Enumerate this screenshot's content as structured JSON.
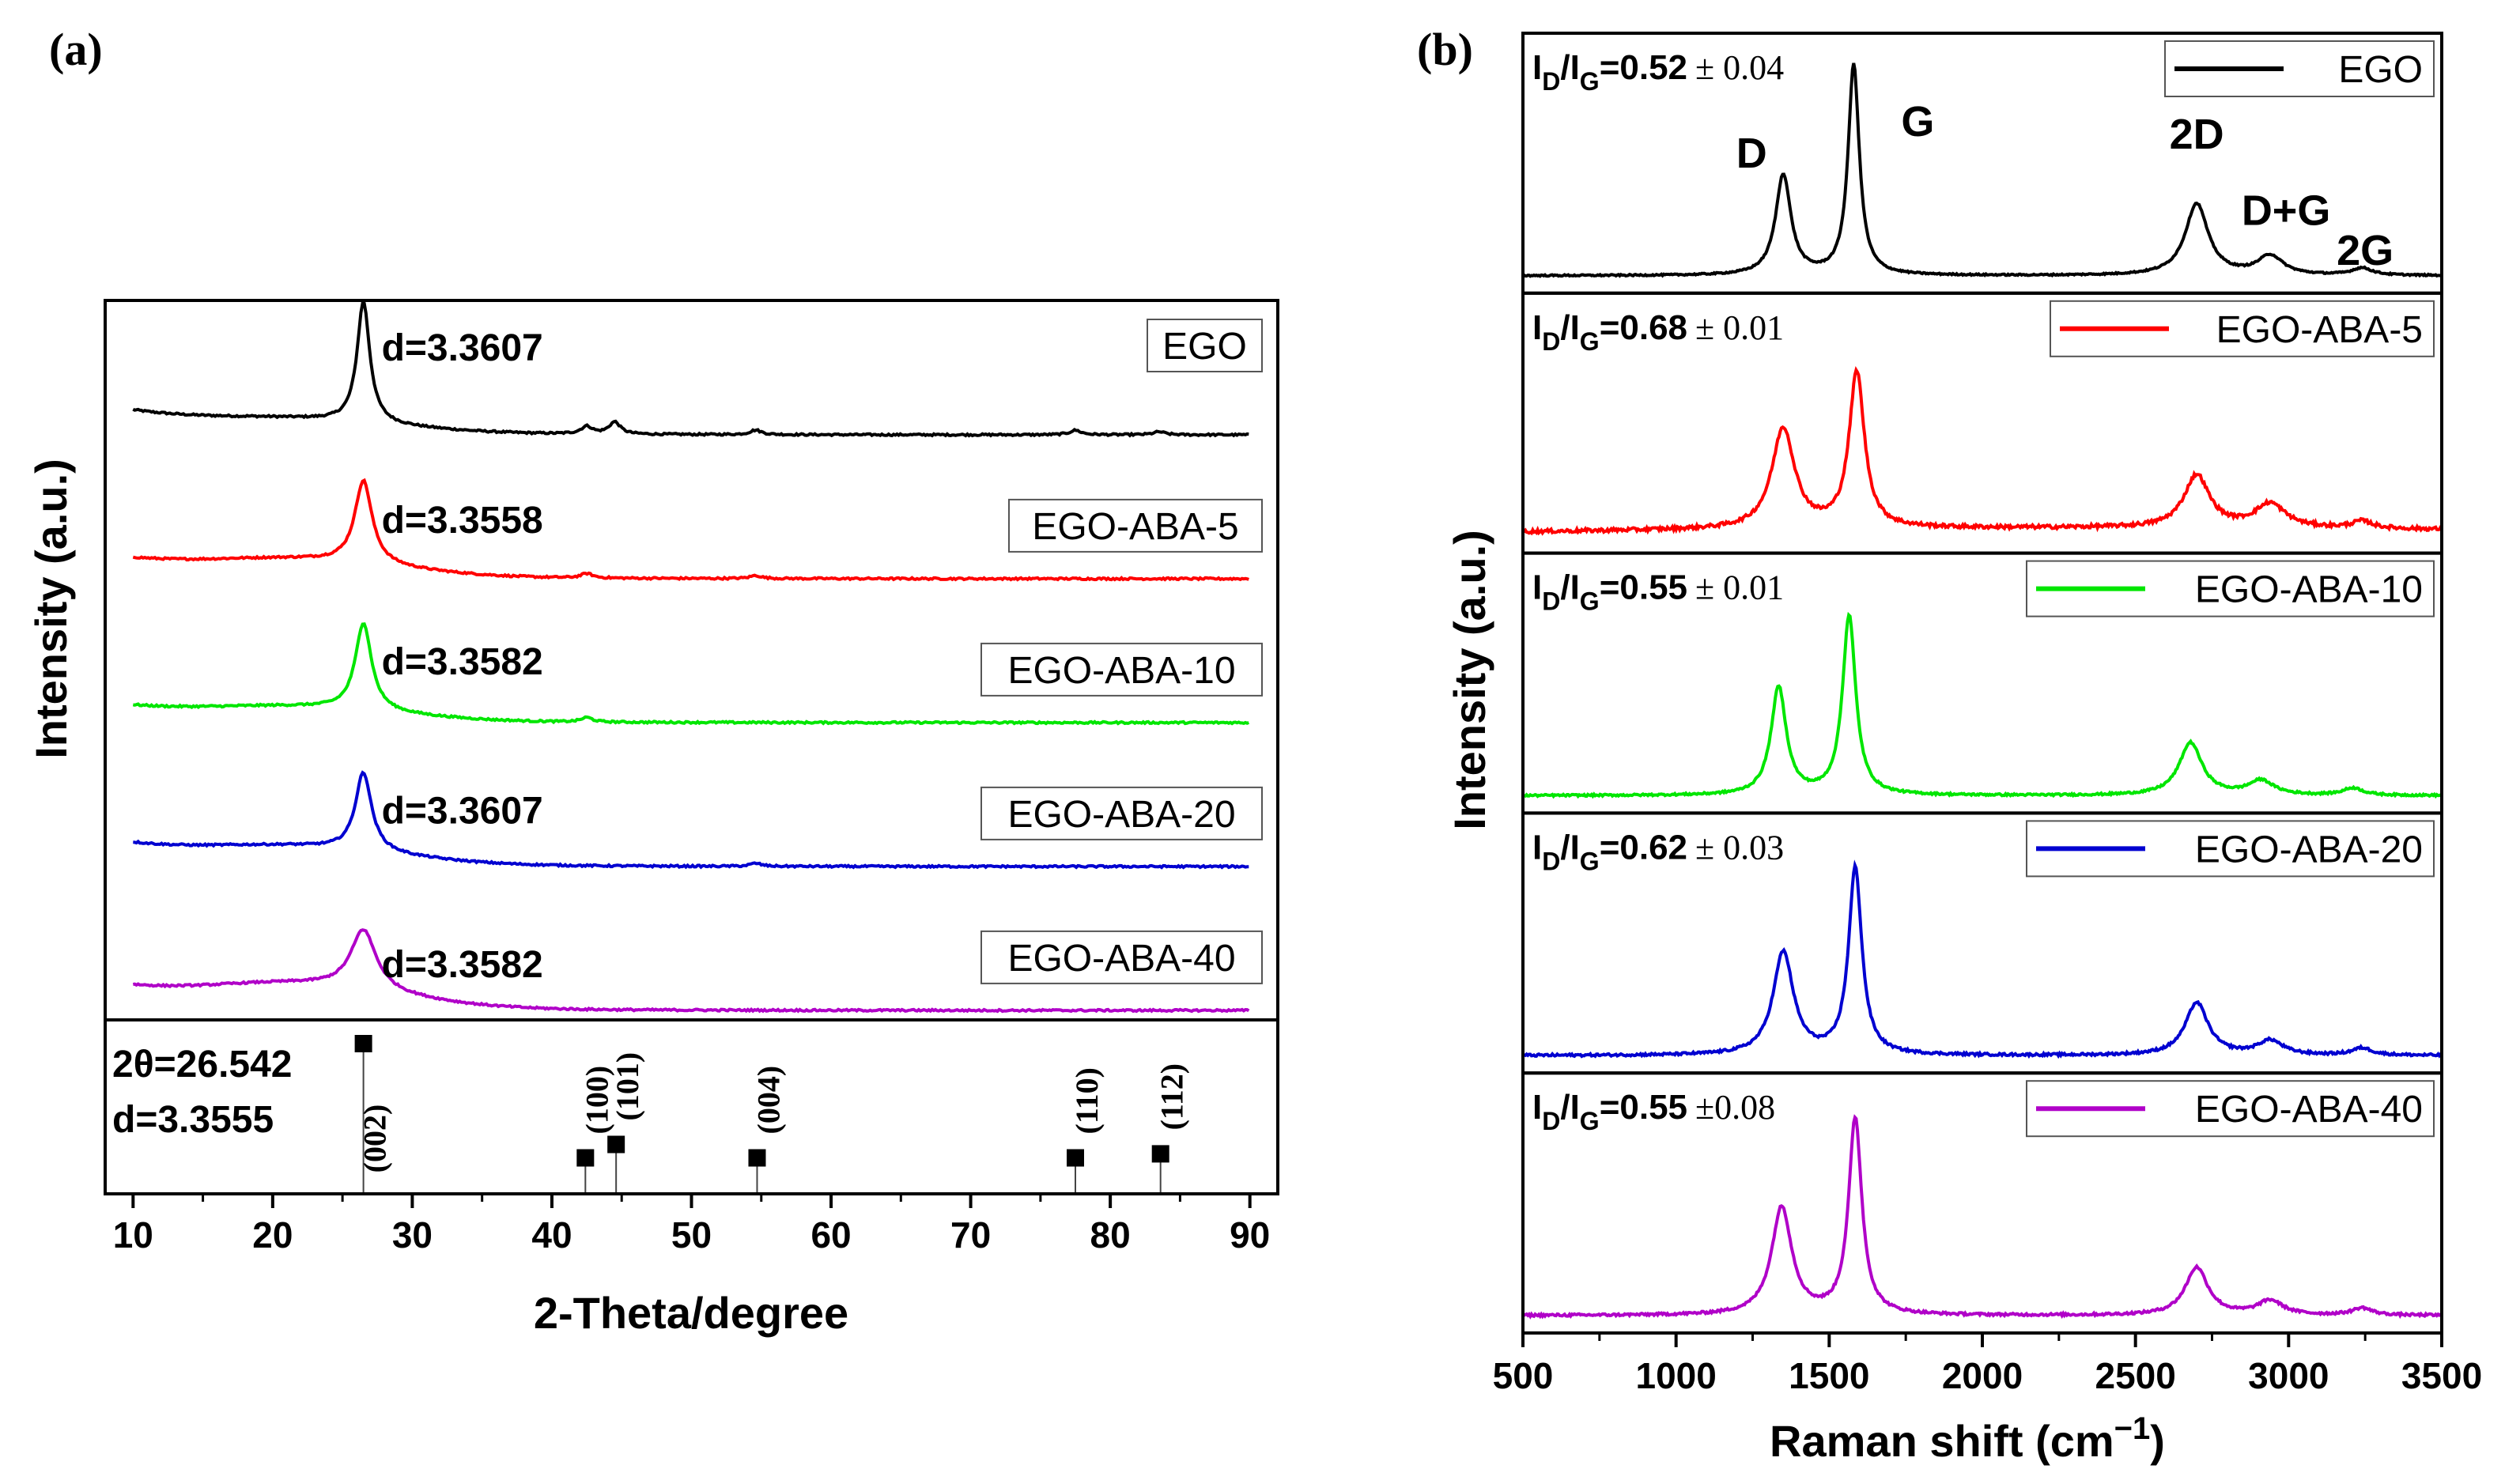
{
  "chart_data": [
    {
      "id": "a",
      "panel_label": "(a)",
      "type": "line",
      "title": "",
      "xlabel": "2-Theta/degree",
      "ylabel": "Intensity (a.u.)",
      "xlim": [
        8,
        92
      ],
      "xticks": [
        10,
        20,
        30,
        40,
        50,
        60,
        70,
        80,
        90
      ],
      "series": [
        {
          "name": "EGO",
          "color": "#000000",
          "d_label": "d=3.3607",
          "baseline": 0.12,
          "peak_height": 0.8,
          "peak_width": 0.55,
          "hump": 0.07,
          "low_angle": 0.15,
          "minor_peaks": [
            [
              42.5,
              0.05
            ],
            [
              44.5,
              0.08
            ],
            [
              54.6,
              0.03
            ],
            [
              77.5,
              0.03
            ],
            [
              83.5,
              0.02
            ]
          ]
        },
        {
          "name": "EGO-ABA-5",
          "color": "#ff0000",
          "d_label": "d=3.3558",
          "baseline": 0.1,
          "peak_height": 0.55,
          "peak_width": 0.75,
          "hump": 0.1,
          "low_angle": 0.12,
          "minor_peaks": [
            [
              42.5,
              0.03
            ],
            [
              54.6,
              0.02
            ]
          ]
        },
        {
          "name": "EGO-ABA-10",
          "color": "#00e600",
          "d_label": "d=3.3582",
          "baseline": 0.1,
          "peak_height": 0.58,
          "peak_width": 0.7,
          "hump": 0.08,
          "low_angle": 0.1,
          "minor_peaks": [
            [
              42.5,
              0.03
            ]
          ]
        },
        {
          "name": "EGO-ABA-20",
          "color": "#0000d0",
          "d_label": "d=3.3607",
          "baseline": 0.1,
          "peak_height": 0.52,
          "peak_width": 0.7,
          "hump": 0.1,
          "low_angle": 0.14,
          "minor_peaks": [
            [
              54.6,
              0.02
            ]
          ]
        },
        {
          "name": "EGO-ABA-40",
          "color": "#b000c8",
          "d_label": "d=3.3582",
          "baseline": 0.08,
          "peak_height": 0.4,
          "peak_width": 1.1,
          "hump": 0.14,
          "low_angle": 0.14,
          "minor_peaks": []
        }
      ],
      "reference": {
        "two_theta_text": "2θ=26.542",
        "d_text": "d=3.3555",
        "peaks": [
          {
            "hkl": "(002)",
            "two_theta": 26.5,
            "intensity": 1.0
          },
          {
            "hkl": "(100)",
            "two_theta": 42.4,
            "intensity": 0.15
          },
          {
            "hkl": "(101)",
            "two_theta": 44.6,
            "intensity": 0.25
          },
          {
            "hkl": "(004)",
            "two_theta": 54.7,
            "intensity": 0.15
          },
          {
            "hkl": "(110)",
            "two_theta": 77.5,
            "intensity": 0.15
          },
          {
            "hkl": "(112)",
            "two_theta": 83.6,
            "intensity": 0.18
          }
        ]
      }
    },
    {
      "id": "b",
      "panel_label": "(b)",
      "type": "line",
      "title": "",
      "xlabel": "Raman shift (cm",
      "xlabel_sup": "−1",
      "xlabel_close": ")",
      "ylabel": "Intensity (a.u.)",
      "xlim": [
        500,
        3500
      ],
      "xticks": [
        500,
        1000,
        1500,
        2000,
        2500,
        3000,
        3500
      ],
      "ratio_prefix": "I",
      "ratio_sub_d": "D",
      "ratio_slash": "/I",
      "ratio_sub_g": "G",
      "peak_labels": [
        "D",
        "G",
        "2D",
        "D+G",
        "2G"
      ],
      "series": [
        {
          "name": "EGO",
          "color": "#000000",
          "ratio_value": "=0.52",
          "ratio_err": "± 0.04",
          "slope": 0.0,
          "D": [
            1350,
            0.42,
            30
          ],
          "G": [
            1580,
            0.88,
            22
          ],
          "D2": [
            2700,
            0.3,
            45
          ],
          "DG": [
            2940,
            0.08,
            50
          ],
          "G2": [
            3240,
            0.03,
            40
          ],
          "noise": 0.006
        },
        {
          "name": "EGO-ABA-5",
          "color": "#ff0000",
          "ratio_value": "=0.68",
          "ratio_err": "± 0.01",
          "slope": 0.08,
          "D": [
            1350,
            0.42,
            45
          ],
          "G": [
            1590,
            0.65,
            30
          ],
          "D2": [
            2700,
            0.22,
            50
          ],
          "DG": [
            2940,
            0.1,
            60
          ],
          "G2": [
            3240,
            0.03,
            40
          ],
          "noise": 0.015
        },
        {
          "name": "EGO-ABA-10",
          "color": "#00e600",
          "ratio_value": "=0.55",
          "ratio_err": "± 0.01",
          "slope": 0.0,
          "D": [
            1335,
            0.45,
            30
          ],
          "G": [
            1565,
            0.75,
            26
          ],
          "D2": [
            2680,
            0.22,
            45
          ],
          "DG": [
            2910,
            0.06,
            50
          ],
          "G2": [
            3210,
            0.03,
            40
          ],
          "noise": 0.008
        },
        {
          "name": "EGO-ABA-20",
          "color": "#0000d0",
          "ratio_value": "=0.62",
          "ratio_err": "± 0.03",
          "slope": 0.0,
          "D": [
            1350,
            0.43,
            40
          ],
          "G": [
            1585,
            0.78,
            26
          ],
          "D2": [
            2700,
            0.22,
            45
          ],
          "DG": [
            2940,
            0.06,
            50
          ],
          "G2": [
            3240,
            0.03,
            40
          ],
          "noise": 0.01
        },
        {
          "name": "EGO-ABA-40",
          "color": "#b000c8",
          "ratio_value": "=0.55",
          "ratio_err": "±0.08",
          "slope": 0.0,
          "D": [
            1345,
            0.45,
            40
          ],
          "G": [
            1585,
            0.82,
            26
          ],
          "D2": [
            2700,
            0.2,
            45
          ],
          "DG": [
            2940,
            0.06,
            50
          ],
          "G2": [
            3240,
            0.03,
            40
          ],
          "noise": 0.01
        }
      ]
    }
  ]
}
